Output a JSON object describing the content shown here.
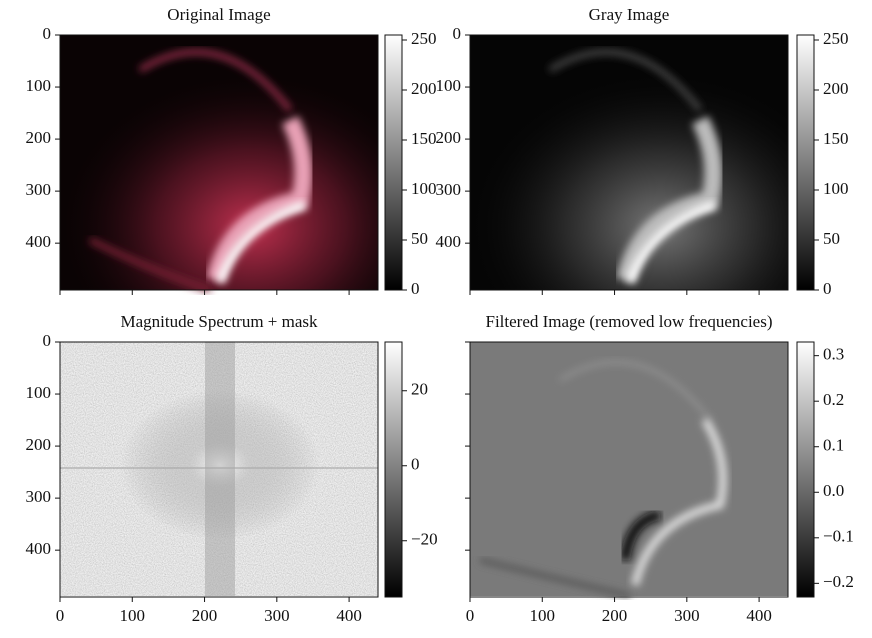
{
  "chart_data": [
    {
      "type": "image",
      "title": "Original Image",
      "xlim": [
        0,
        440
      ],
      "ylim": [
        490,
        0
      ],
      "xticks": [
        0,
        100,
        200,
        300,
        400
      ],
      "yticks": [
        0,
        100,
        200,
        300,
        400
      ],
      "xtick_labels": false,
      "ytick_labels": true,
      "colorbar": {
        "colormap": "gray",
        "clim": [
          0,
          255
        ],
        "ticks": [
          0,
          50,
          100,
          150,
          200,
          250
        ]
      }
    },
    {
      "type": "image",
      "title": "Gray Image",
      "xlim": [
        0,
        440
      ],
      "ylim": [
        490,
        0
      ],
      "xticks": [
        0,
        100,
        200,
        300,
        400
      ],
      "yticks": [
        0,
        100,
        200,
        300,
        400
      ],
      "xtick_labels": false,
      "ytick_labels": true,
      "colorbar": {
        "colormap": "gray",
        "clim": [
          0,
          255
        ],
        "ticks": [
          0,
          50,
          100,
          150,
          200,
          250
        ]
      }
    },
    {
      "type": "image",
      "title": "Magnitude Spectrum + mask",
      "xlim": [
        0,
        440
      ],
      "ylim": [
        490,
        0
      ],
      "xticks": [
        0,
        100,
        200,
        300,
        400
      ],
      "yticks": [
        0,
        100,
        200,
        300,
        400
      ],
      "xtick_labels": true,
      "ytick_labels": true,
      "colorbar": {
        "colormap": "gray",
        "clim": [
          -35,
          33
        ],
        "ticks": [
          {
            "value": -20,
            "label": "−20"
          },
          0,
          20
        ]
      }
    },
    {
      "type": "image",
      "title": "Filtered Image (removed low frequencies)",
      "xlim": [
        0,
        440
      ],
      "ylim": [
        490,
        0
      ],
      "xticks": [
        0,
        100,
        200,
        300,
        400
      ],
      "yticks": [
        0,
        100,
        200,
        300,
        400
      ],
      "xtick_labels": true,
      "ytick_labels": false,
      "colorbar": {
        "colormap": "gray",
        "clim": [
          -0.23,
          0.33
        ],
        "ticks": [
          {
            "value": -0.2,
            "label": "−0.2"
          },
          {
            "value": -0.1,
            "label": "−0.1"
          },
          {
            "value": 0,
            "label": "0.0"
          },
          0.1,
          0.2,
          0.3
        ]
      }
    }
  ]
}
